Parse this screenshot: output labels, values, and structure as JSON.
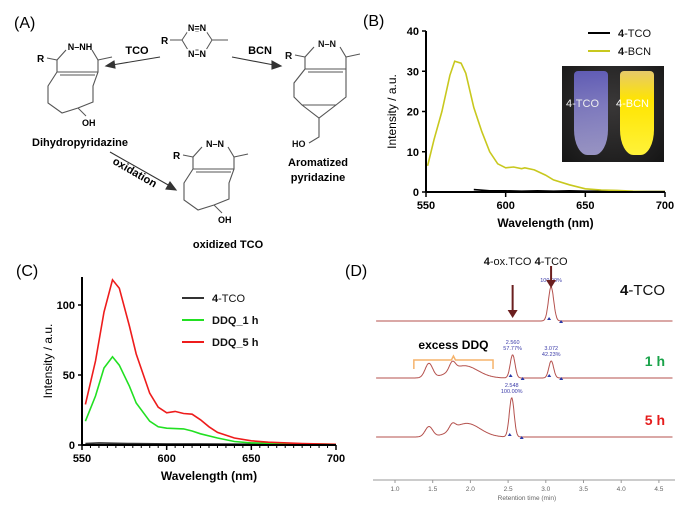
{
  "panels": {
    "A": {
      "label": "(A)",
      "scheme": {
        "reagent_left": "TCO",
        "reagent_right": "BCN",
        "reaction_down": "oxidation",
        "product_left": "Dihydropyridazine",
        "product_right_line1": "Aromatized",
        "product_right_line2": "pyridazine",
        "product_bottom": "oxidized TCO",
        "atom_R": "R",
        "atom_OH": "OH",
        "atom_HO": "HO",
        "ring_NN": "N–N",
        "ring_NNH": "N–NH",
        "tetrazine_top": "N=N",
        "tetrazine_bottom": "N–N"
      }
    },
    "B": {
      "label": "(B)",
      "inset_label_left": "4-TCO",
      "inset_label_right": "4-BCN"
    },
    "C": {
      "label": "(C)"
    },
    "D": {
      "label": "(D)"
    }
  },
  "chart_data": [
    {
      "panel": "B",
      "type": "line",
      "xlabel": "Wavelength (nm)",
      "ylabel": "Intensity / a.u.",
      "xlim": [
        550,
        700
      ],
      "ylim": [
        0,
        40
      ],
      "xticks": [
        550,
        600,
        650,
        700
      ],
      "yticks": [
        0,
        10,
        20,
        30,
        40
      ],
      "grid": false,
      "legend": "top-right",
      "series": [
        {
          "name": "4-TCO",
          "bold": "4",
          "rest": "-TCO",
          "color": "#000000",
          "x": [
            580,
            590,
            600,
            610,
            620,
            630,
            640,
            650,
            660,
            670,
            680,
            690,
            700
          ],
          "y": [
            0.6,
            0.3,
            0.3,
            0.2,
            0.3,
            0.2,
            0.3,
            0.2,
            0.2,
            0.2,
            0.1,
            0.1,
            0.1
          ]
        },
        {
          "name": "4-BCN",
          "bold": "4",
          "rest": "-BCN",
          "color": "#c8c81e",
          "x": [
            551,
            555,
            560,
            565,
            568,
            572,
            575,
            580,
            585,
            590,
            595,
            600,
            605,
            610,
            612,
            618,
            625,
            630,
            640,
            650,
            660,
            670,
            680,
            690,
            700
          ],
          "y": [
            6.5,
            13,
            20,
            29,
            32.5,
            32,
            29.5,
            21,
            15,
            10,
            7,
            6,
            6.2,
            5.8,
            6,
            5.5,
            4.2,
            3,
            1.8,
            0.8,
            0.5,
            0.4,
            0.2,
            0.1,
            0.1
          ]
        }
      ]
    },
    {
      "panel": "C",
      "type": "line",
      "xlabel": "Wavelength (nm)",
      "ylabel": "Intensity / a.u.",
      "xlim": [
        550,
        700
      ],
      "ylim": [
        0,
        120
      ],
      "xticks": [
        550,
        600,
        650,
        700
      ],
      "yticks": [
        0,
        50,
        100
      ],
      "grid": false,
      "legend": "top-right",
      "series": [
        {
          "name": "4-TCO",
          "bold": "4",
          "rest": "-TCO",
          "color": "#333333",
          "x": [
            552,
            560,
            570,
            580,
            600,
            620,
            650,
            700
          ],
          "y": [
            1,
            1.5,
            1.2,
            1,
            0.8,
            0.8,
            0.6,
            0.5
          ]
        },
        {
          "name": "DDQ_1 h",
          "bold": "DDQ_1 h",
          "rest": "",
          "color": "#22e022",
          "x": [
            552,
            558,
            563,
            568,
            572,
            578,
            582,
            590,
            595,
            600,
            610,
            615,
            620,
            630,
            640,
            650,
            670,
            700
          ],
          "y": [
            17,
            35,
            55,
            63,
            57,
            42,
            30,
            17,
            13,
            12,
            11.5,
            10,
            8,
            5,
            2.5,
            1.5,
            1,
            0.5
          ]
        },
        {
          "name": "DDQ_5 h",
          "bold": "DDQ_5 h",
          "rest": "",
          "color": "#ee1c1c",
          "x": [
            552,
            558,
            563,
            568,
            572,
            578,
            582,
            590,
            595,
            600,
            605,
            610,
            615,
            620,
            625,
            630,
            640,
            650,
            660,
            680,
            700
          ],
          "y": [
            29,
            60,
            95,
            118,
            112,
            85,
            65,
            37,
            27,
            23,
            24,
            22.5,
            22,
            18,
            13,
            9,
            5,
            3,
            2,
            1,
            0.5
          ]
        }
      ]
    },
    {
      "panel": "D",
      "type": "line",
      "xlabel": "Retention time (min)",
      "xlim": [
        0.75,
        4.7
      ],
      "xticks": [
        "1.0",
        "1.5",
        "2.0",
        "2.5",
        "3.0",
        "3.5",
        "4.0",
        "4.5"
      ],
      "trace_color": "#b5524e",
      "annotations": {
        "arrow_ox": {
          "bold": "4",
          "rest": "-ox.TCO",
          "rt": 2.56,
          "color": "#6b1f1f"
        },
        "arrow_tco": {
          "bold": "4",
          "rest": "-TCO",
          "rt": 3.07,
          "color": "#6b1f1f"
        },
        "excess": "excess DDQ",
        "excess_color": "#f5b36b",
        "excess_range": [
          1.25,
          2.3
        ]
      },
      "traces": [
        {
          "label_bold": "4",
          "label_rest": "-TCO",
          "label_color": "#111111",
          "peaks": [
            {
              "rt": 3.07,
              "height": 1.0,
              "width": 0.035,
              "label": [
                "100.00%"
              ]
            }
          ]
        },
        {
          "label_bold": "1 h",
          "label_rest": "",
          "label_color": "#1aa34a",
          "peaks": [
            {
              "rt": 1.45,
              "height": 0.42,
              "width": 0.05
            },
            {
              "rt": 1.76,
              "height": 0.25,
              "width": 0.04
            },
            {
              "rt": 1.92,
              "height": 0.36,
              "width": 0.18
            },
            {
              "rt": 2.56,
              "height": 0.68,
              "width": 0.032,
              "label": [
                "2.560",
                "57.77%"
              ]
            },
            {
              "rt": 3.072,
              "height": 0.5,
              "width": 0.032,
              "label": [
                "3.072",
                "42.23%"
              ]
            }
          ]
        },
        {
          "label_bold": "5 h",
          "label_rest": "",
          "label_color": "#e51c1c",
          "peaks": [
            {
              "rt": 1.45,
              "height": 0.3,
              "width": 0.05
            },
            {
              "rt": 1.76,
              "height": 0.18,
              "width": 0.04
            },
            {
              "rt": 1.95,
              "height": 0.4,
              "width": 0.18
            },
            {
              "rt": 2.548,
              "height": 1.15,
              "width": 0.032,
              "label": [
                "2.548",
                "100.00%"
              ]
            }
          ]
        }
      ]
    }
  ]
}
